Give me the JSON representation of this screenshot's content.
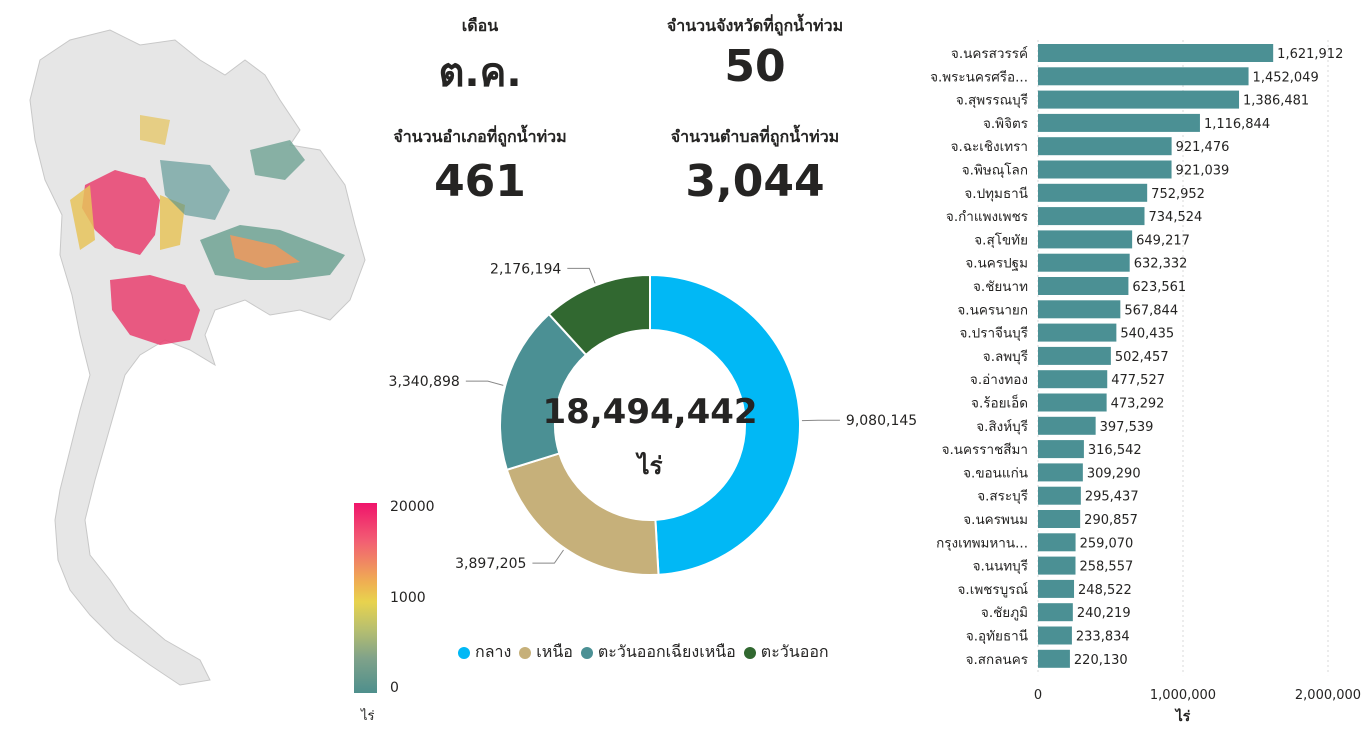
{
  "kpis": {
    "month_label": "เดือน",
    "month_value": "ต.ค.",
    "provinces_label": "จำนวนจังหวัดที่ถูกน้ำท่วม",
    "provinces_value": "50",
    "districts_label": "จำนวนอำเภอที่ถูกน้ำท่วม",
    "districts_value": "461",
    "subdistricts_label": "จำนวนตำบลที่ถูกน้ำท่วม",
    "subdistricts_value": "3,044"
  },
  "map": {
    "scale_max": "20000",
    "scale_mid": "1000",
    "scale_min": "0",
    "unit": "ไร่"
  },
  "chart_data": [
    {
      "type": "pie",
      "total_label": "18,494,442",
      "unit": "ไร่",
      "categories": [
        "กลาง",
        "เหนือ",
        "ตะวันออกเฉียงเหนือ",
        "ตะวันออก"
      ],
      "values": [
        9080145,
        3897205,
        3340898,
        2176194
      ],
      "value_labels": [
        "9,080,145",
        "3,897,205",
        "3,340,898",
        "2,176,194"
      ],
      "colors": [
        "#01b8f5",
        "#c6b07a",
        "#4b9094",
        "#316830"
      ],
      "legend": "bottom"
    },
    {
      "type": "bar",
      "orientation": "horizontal",
      "categories": [
        "จ.นครสวรรค์",
        "จ.พระนครศรีอ...",
        "จ.สุพรรณบุรี",
        "จ.พิจิตร",
        "จ.ฉะเชิงเทรา",
        "จ.พิษณุโลก",
        "จ.ปทุมธานี",
        "จ.กำแพงเพชร",
        "จ.สุโขทัย",
        "จ.นครปฐม",
        "จ.ชัยนาท",
        "จ.นครนายก",
        "จ.ปราจีนบุรี",
        "จ.ลพบุรี",
        "จ.อ่างทอง",
        "จ.ร้อยเอ็ด",
        "จ.สิงห์บุรี",
        "จ.นครราชสีมา",
        "จ.ขอนแก่น",
        "จ.สระบุรี",
        "จ.นครพนม",
        "กรุงเทพมหาน...",
        "จ.นนทบุรี",
        "จ.เพชรบูรณ์",
        "จ.ชัยภูมิ",
        "จ.อุทัยธานี",
        "จ.สกลนคร"
      ],
      "values": [
        1621912,
        1452049,
        1386481,
        1116844,
        921476,
        921039,
        752952,
        734524,
        649217,
        632332,
        623561,
        567844,
        540435,
        502457,
        477527,
        473292,
        397539,
        316542,
        309290,
        295437,
        290857,
        259070,
        258557,
        248522,
        240219,
        233834,
        220130
      ],
      "value_labels": [
        "1,621,912",
        "1,452,049",
        "1,386,481",
        "1,116,844",
        "921,476",
        "921,039",
        "752,952",
        "734,524",
        "649,217",
        "632,332",
        "623,561",
        "567,844",
        "540,435",
        "502,457",
        "477,527",
        "473,292",
        "397,539",
        "316,542",
        "309,290",
        "295,437",
        "290,857",
        "259,070",
        "258,557",
        "248,522",
        "240,219",
        "233,834",
        "220,130"
      ],
      "xlim": [
        0,
        2000000
      ],
      "xticks": [
        "0",
        "1,000,000",
        "2,000,000"
      ],
      "xlabel": "ไร่",
      "color": "#4b9094",
      "grid": true
    }
  ]
}
